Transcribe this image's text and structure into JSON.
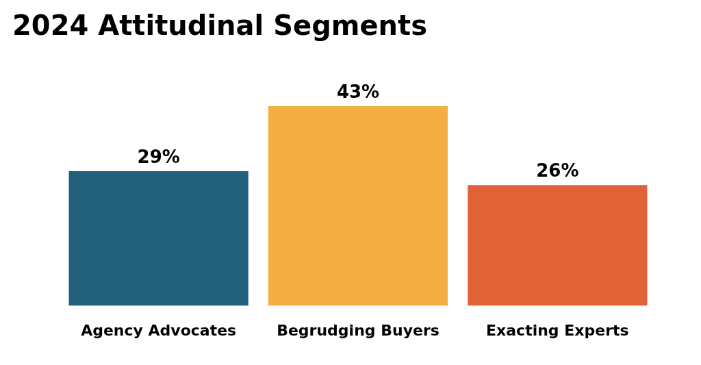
{
  "chart_data": {
    "type": "bar",
    "title": "2024 Attitudinal Segments",
    "categories": [
      "Agency Advocates",
      "Begrudging Buyers",
      "Exacting Experts"
    ],
    "values": [
      29,
      43,
      26
    ],
    "colors": [
      "#22617b",
      "#f4af42",
      "#e06236"
    ],
    "value_labels": [
      "29%",
      "43%",
      "26%"
    ],
    "grid": false,
    "legend": false
  }
}
